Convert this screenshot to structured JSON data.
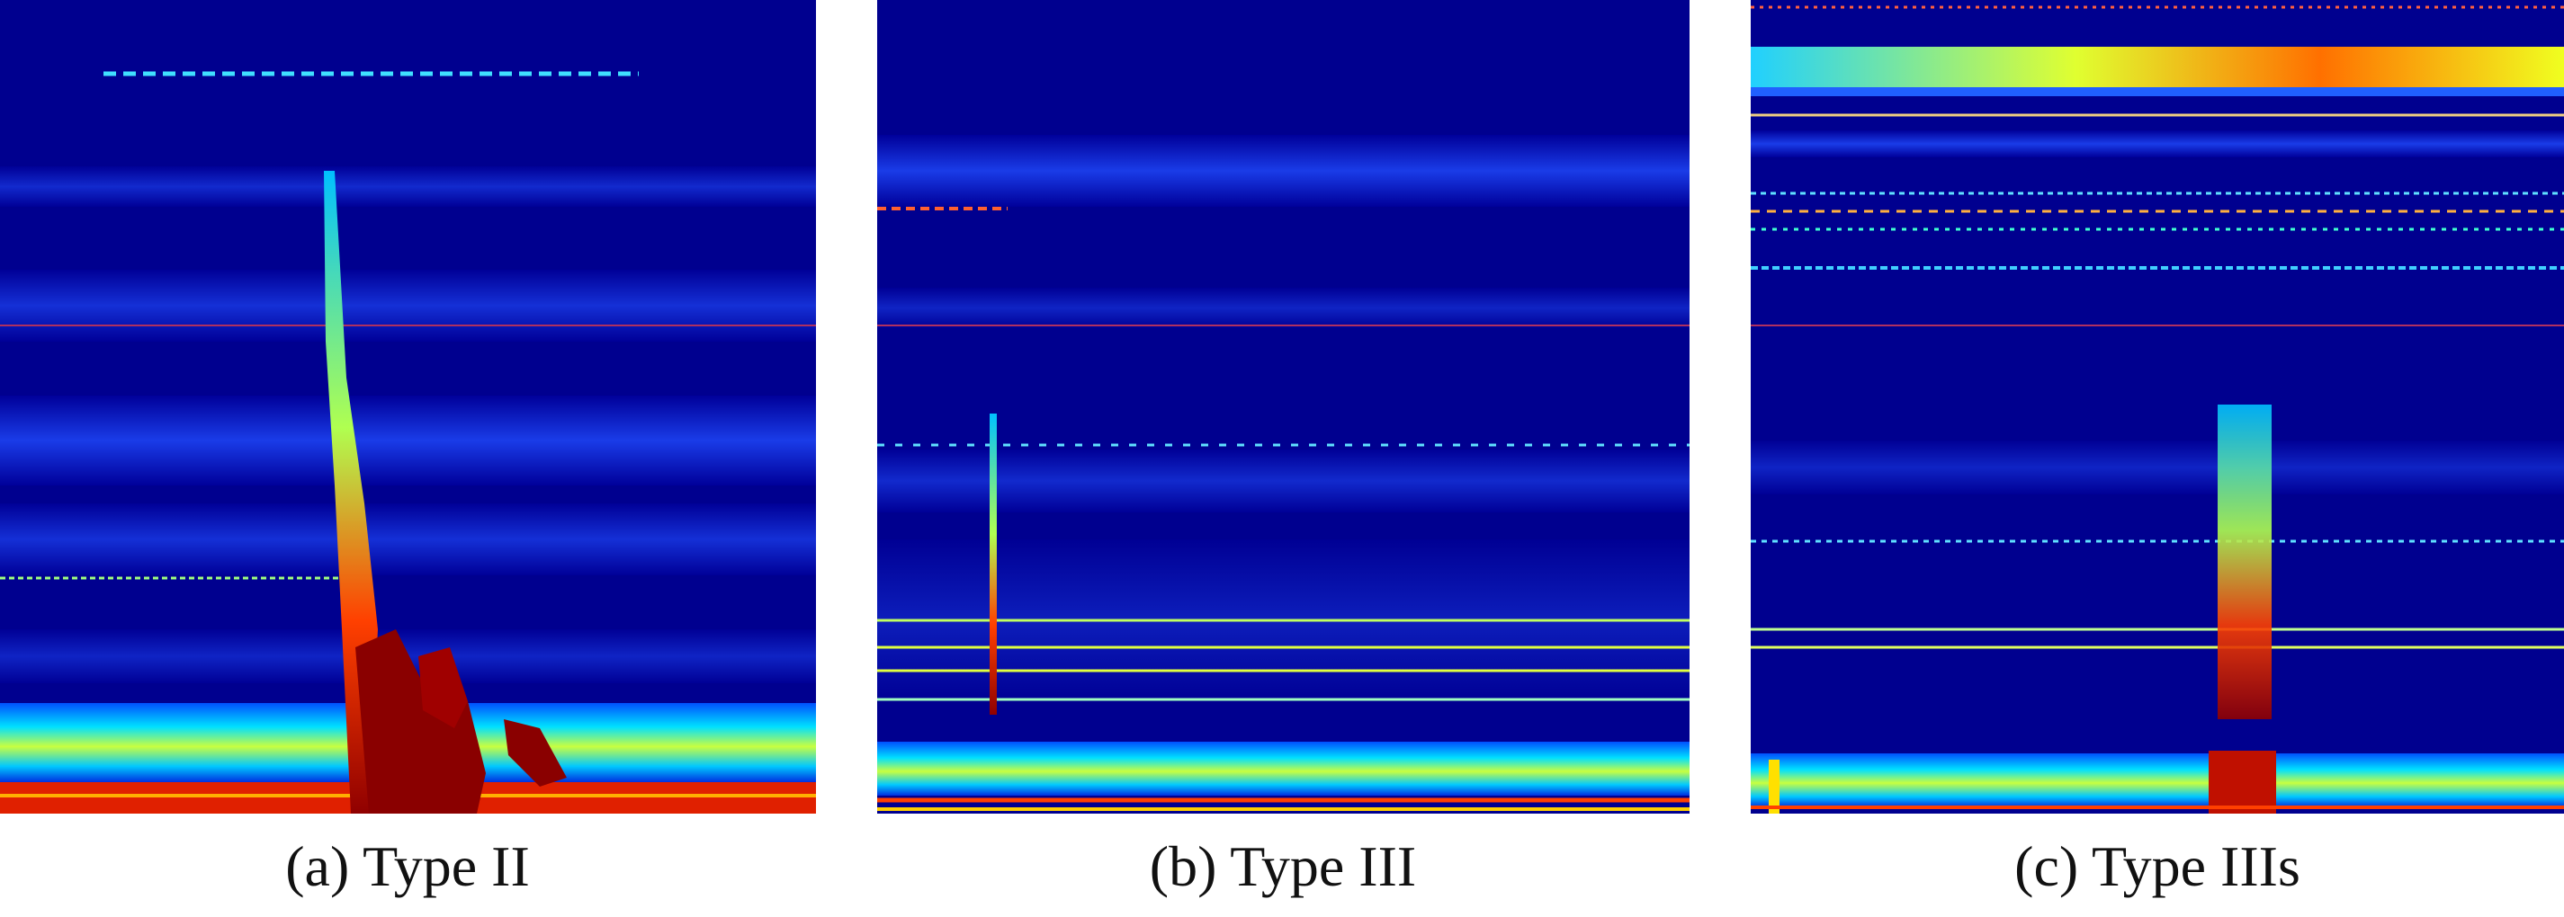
{
  "figure": {
    "panels": [
      {
        "caption": "(a) Type II"
      },
      {
        "caption": "(b) Type III"
      },
      {
        "caption": "(c) Type IIIs"
      }
    ]
  }
}
